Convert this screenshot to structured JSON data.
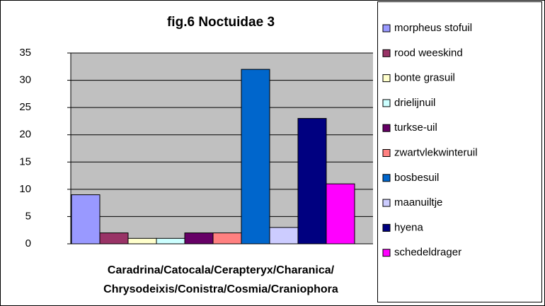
{
  "chart_data": {
    "type": "bar",
    "title": "fig.6  Noctuidae 3",
    "xlabel": [
      "Caradrina/Catocala/Cerapteryx/Charanica/",
      "Chrysodeixis/Conistra/Cosmia/Craniophora"
    ],
    "ylim": [
      0,
      35
    ],
    "yticks": [
      0,
      5,
      10,
      15,
      20,
      25,
      30,
      35
    ],
    "grid": true,
    "series": [
      {
        "name": "morpheus stofuil",
        "color": "#9999ff",
        "values": [
          9
        ]
      },
      {
        "name": "rood weeskind",
        "color": "#993366",
        "values": [
          2
        ]
      },
      {
        "name": "bonte grasuil",
        "color": "#ffffcc",
        "values": [
          1
        ]
      },
      {
        "name": "drielijnuil",
        "color": "#ccffff",
        "values": [
          1
        ]
      },
      {
        "name": "turkse-uil",
        "color": "#660066",
        "values": [
          2
        ]
      },
      {
        "name": "zwartvlekwinteruil",
        "color": "#ff8080",
        "values": [
          2
        ]
      },
      {
        "name": "bosbesuil",
        "color": "#0066cc",
        "values": [
          32
        ]
      },
      {
        "name": "maanuiltje",
        "color": "#ccccff",
        "values": [
          3
        ]
      },
      {
        "name": "hyena",
        "color": "#000080",
        "values": [
          23
        ]
      },
      {
        "name": "schedeldrager",
        "color": "#ff00ff",
        "values": [
          11
        ]
      }
    ]
  }
}
